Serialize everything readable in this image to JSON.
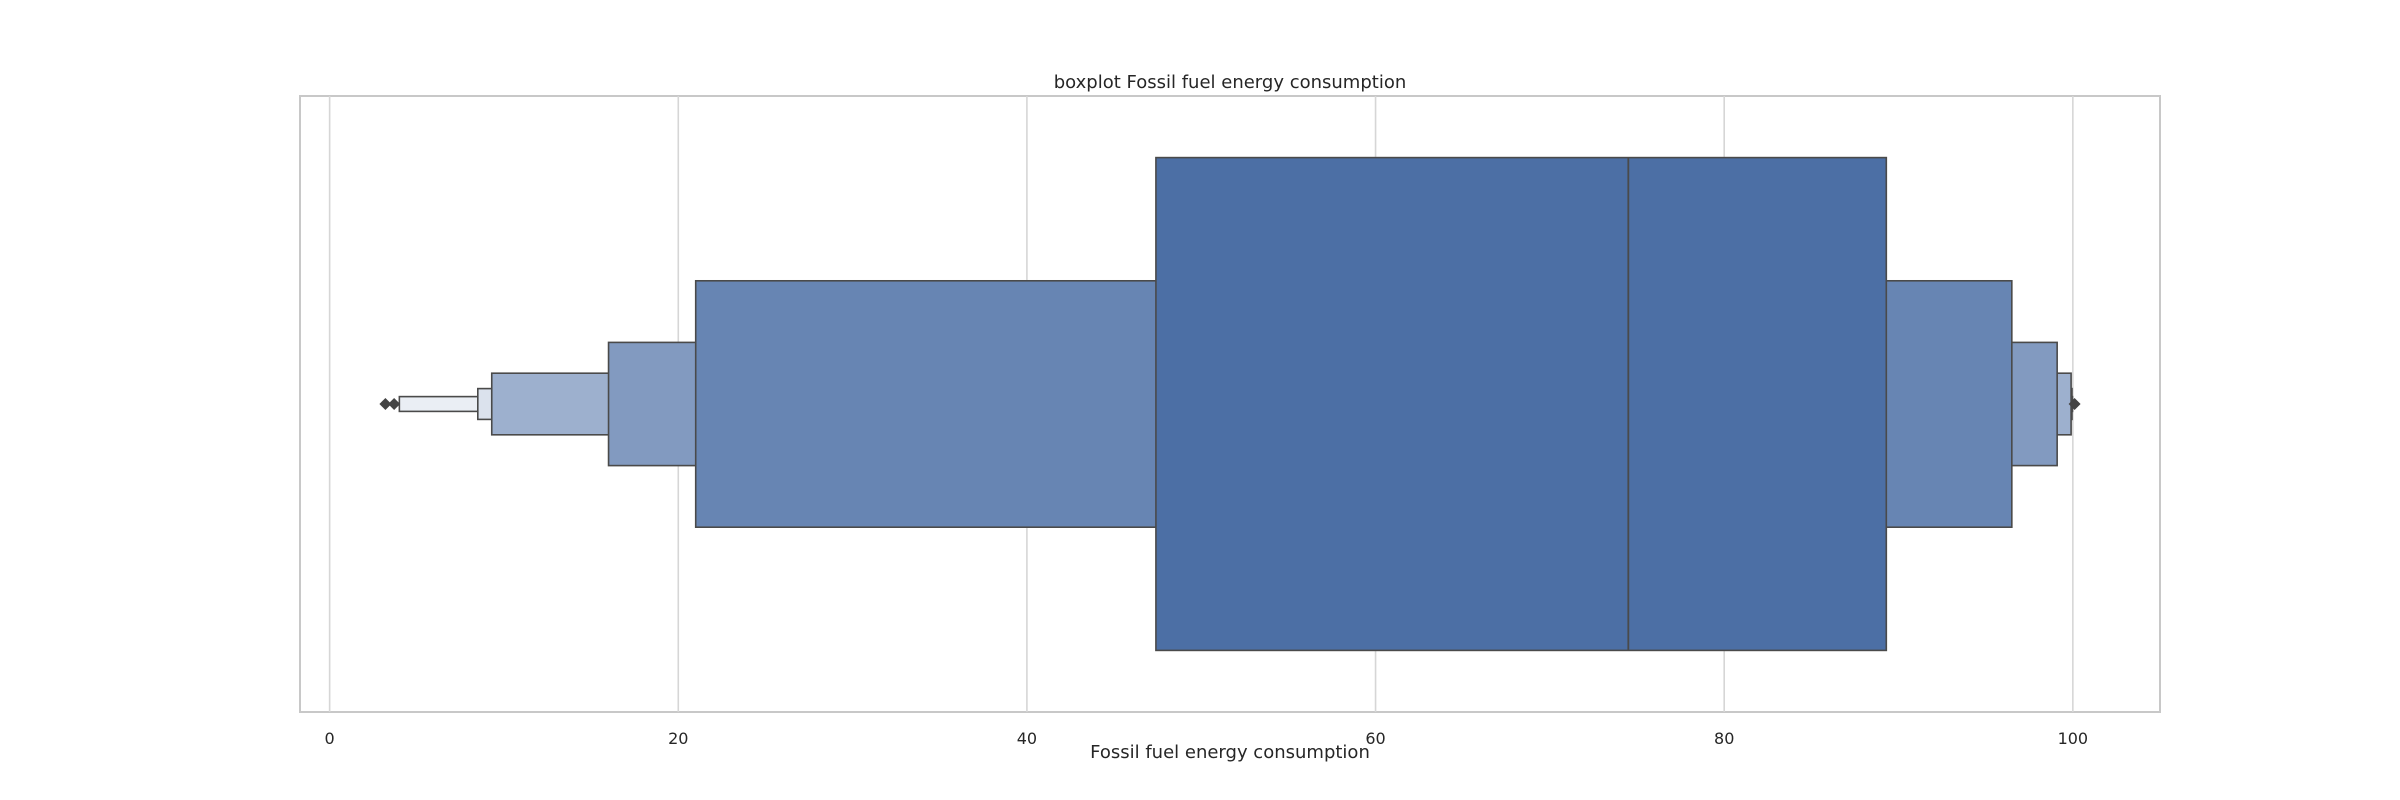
{
  "chart_data": {
    "type": "boxen",
    "title": "boxplot Fossil fuel energy consumption",
    "xlabel": "Fossil fuel energy consumption",
    "ylabel": "",
    "xlim": [
      -1.7,
      105
    ],
    "xticks": [
      0,
      20,
      40,
      60,
      80,
      100
    ],
    "grid": "vertical",
    "color": "#4c6fa5",
    "edge_color": "#4a4a4a",
    "median": 74.5,
    "letter_values": [
      {
        "level": 1,
        "low": 47.4,
        "high": 89.3
      },
      {
        "level": 2,
        "low": 21.0,
        "high": 96.5
      },
      {
        "level": 3,
        "low": 16.0,
        "high": 99.1
      },
      {
        "level": 4,
        "low": 9.3,
        "high": 99.9
      },
      {
        "level": 5,
        "low": 8.5,
        "high": 99.95
      },
      {
        "level": 6,
        "low": 4.0,
        "high": 99.98
      }
    ],
    "outliers": [
      3.2,
      3.7,
      100.1
    ]
  }
}
